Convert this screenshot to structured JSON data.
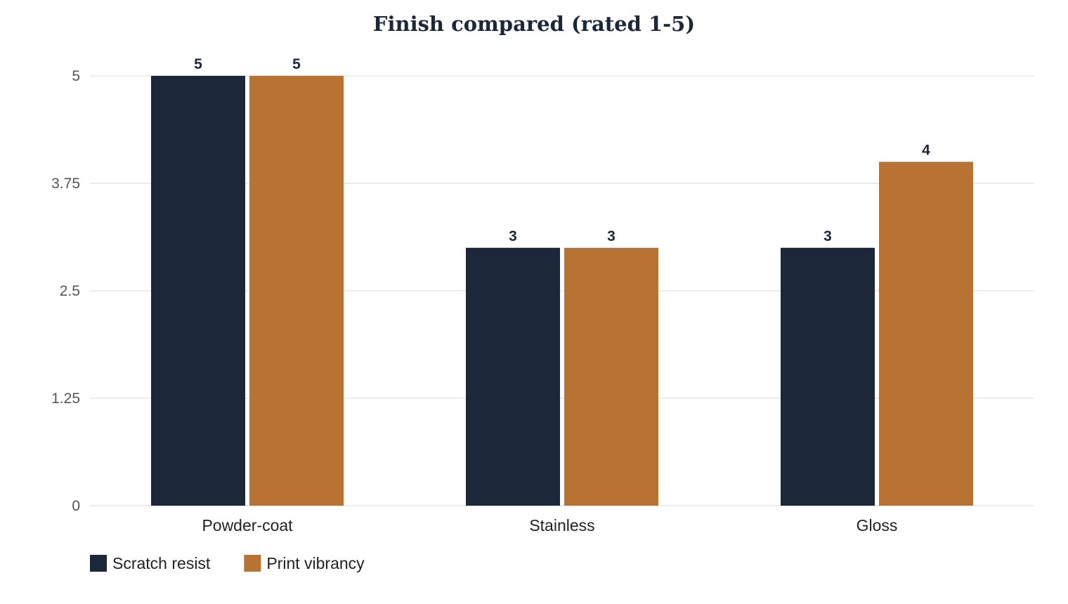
{
  "chart_data": {
    "type": "bar",
    "title": "Finish compared (rated 1-5)",
    "xlabel": "",
    "ylabel": "",
    "categories": [
      "Powder-coat",
      "Stainless",
      "Gloss"
    ],
    "series": [
      {
        "name": "Scratch resist",
        "values": [
          5,
          3,
          3
        ],
        "color": "#1c2839"
      },
      {
        "name": "Print vibrancy",
        "values": [
          5,
          3,
          4
        ],
        "color": "#b87333"
      }
    ],
    "ylim": [
      0,
      5
    ],
    "yticks": [
      "0",
      "1.25",
      "2.5",
      "3.75",
      "5"
    ],
    "grid": true,
    "legend_position": "bottom-left"
  }
}
